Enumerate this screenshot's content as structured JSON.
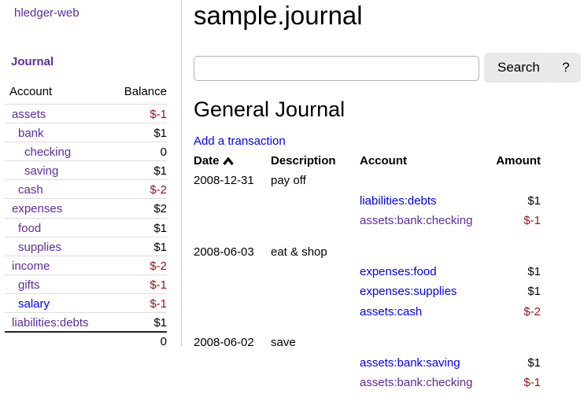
{
  "colors": {
    "link_unvisited": "#0000ee",
    "link_visited": "#5c2d9c",
    "negative_amount": "#941414",
    "divider": "#cccccc",
    "row_border": "#dddddd",
    "button_bg": "#e9e9e9"
  },
  "sidebar": {
    "app_title": "hledger-web",
    "nav_journal": "Journal",
    "accounts_table": {
      "headers": {
        "account": "Account",
        "balance": "Balance"
      },
      "rows": [
        {
          "name": "assets",
          "depth": 1,
          "balance": "$-1",
          "negative": true,
          "visited": true
        },
        {
          "name": "bank",
          "depth": 2,
          "balance": "$1",
          "negative": false,
          "visited": true
        },
        {
          "name": "checking",
          "depth": 3,
          "balance": "0",
          "negative": false,
          "visited": true
        },
        {
          "name": "saving",
          "depth": 3,
          "balance": "$1",
          "negative": false,
          "visited": true
        },
        {
          "name": "cash",
          "depth": 2,
          "balance": "$-2",
          "negative": true,
          "visited": true
        },
        {
          "name": "expenses",
          "depth": 1,
          "balance": "$2",
          "negative": false,
          "visited": true
        },
        {
          "name": "food",
          "depth": 2,
          "balance": "$1",
          "negative": false,
          "visited": true
        },
        {
          "name": "supplies",
          "depth": 2,
          "balance": "$1",
          "negative": false,
          "visited": true
        },
        {
          "name": "income",
          "depth": 1,
          "balance": "$-2",
          "negative": true,
          "visited": true
        },
        {
          "name": "gifts",
          "depth": 2,
          "balance": "$-1",
          "negative": true,
          "visited": true
        },
        {
          "name": "salary",
          "depth": 2,
          "balance": "$-1",
          "negative": true,
          "visited": false
        },
        {
          "name": "liabilities:debts",
          "depth": 1,
          "balance": "$1",
          "negative": false,
          "visited": true
        }
      ],
      "total": "0"
    }
  },
  "main": {
    "page_title": "sample.journal",
    "search": {
      "value": "",
      "placeholder": "",
      "search_label": "Search",
      "help_label": "?",
      "sort_icon": "chevron-up"
    },
    "section_title": "General Journal",
    "add_transaction_label": "Add a transaction",
    "journal_table": {
      "headers": {
        "date": "Date",
        "description": "Description",
        "account": "Account",
        "amount": "Amount"
      },
      "transactions": [
        {
          "date": "2008-12-31",
          "description": "pay off",
          "postings": [
            {
              "account": "liabilities:debts",
              "amount": "$1",
              "negative": false,
              "visited": false
            },
            {
              "account": "assets:bank:checking",
              "amount": "$-1",
              "negative": true,
              "visited": true
            }
          ]
        },
        {
          "date": "2008-06-03",
          "description": "eat & shop",
          "postings": [
            {
              "account": "expenses:food",
              "amount": "$1",
              "negative": false,
              "visited": false
            },
            {
              "account": "expenses:supplies",
              "amount": "$1",
              "negative": false,
              "visited": false
            },
            {
              "account": "assets:cash",
              "amount": "$-2",
              "negative": true,
              "visited": false
            }
          ]
        },
        {
          "date": "2008-06-02",
          "description": "save",
          "postings": [
            {
              "account": "assets:bank:saving",
              "amount": "$1",
              "negative": false,
              "visited": false
            },
            {
              "account": "assets:bank:checking",
              "amount": "$-1",
              "negative": true,
              "visited": true
            }
          ]
        }
      ]
    }
  }
}
